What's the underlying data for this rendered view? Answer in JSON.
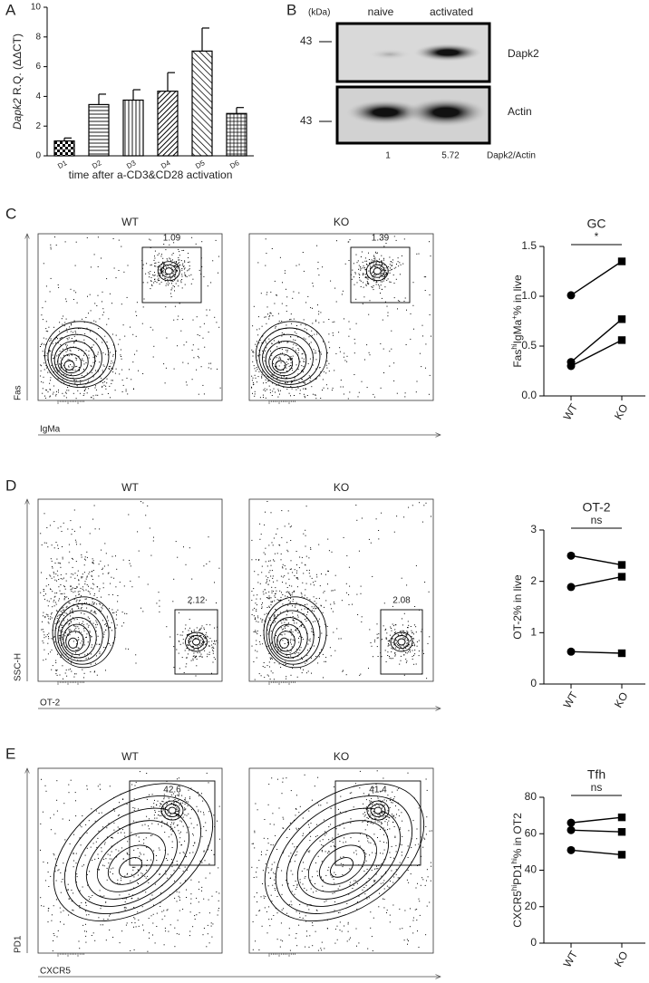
{
  "panel_labels": [
    "A",
    "B",
    "C",
    "D",
    "E"
  ],
  "chart_data": [
    {
      "type": "bar",
      "ylabel": [
        {
          "text": "Dapk2",
          "italic": true
        },
        {
          "text": " R.Q. (ΔΔCT)"
        }
      ],
      "xlabel": "time after a-CD3&CD28 activation",
      "categories": [
        "D1",
        "D2",
        "D3",
        "D4",
        "D5",
        "D6"
      ],
      "values": [
        1.0,
        3.45,
        3.75,
        4.35,
        7.05,
        2.85
      ],
      "errors": [
        0.2,
        0.7,
        0.7,
        1.25,
        1.55,
        0.4
      ],
      "color": "#000000",
      "patterns": [
        "checker",
        "hlines",
        "vlines",
        "diag",
        "diag2",
        "grid"
      ],
      "ylim": [
        0,
        10
      ],
      "yticks": [
        0,
        2,
        4,
        6,
        8,
        10
      ]
    },
    {
      "type": "paired",
      "title": "GC",
      "ylabel": [
        {
          "text": "Fas"
        },
        {
          "text": "hi",
          "sup": true
        },
        {
          "text": "IgMa"
        },
        {
          "text": "+",
          "sup": true
        },
        {
          "text": "% in live"
        }
      ],
      "categories": [
        "WT",
        "KO"
      ],
      "markers": [
        "circle",
        "square"
      ],
      "color": "#000000",
      "series": [
        {
          "values": [
            1.01,
            1.35
          ]
        },
        {
          "values": [
            0.34,
            0.77
          ]
        },
        {
          "values": [
            0.3,
            0.56
          ]
        }
      ],
      "annotation": "*",
      "ylim": [
        0,
        1.5
      ],
      "yticks": [
        {
          "value": 0,
          "label": "0.0"
        },
        0.5,
        {
          "value": 1,
          "label": "1.0"
        },
        1.5
      ]
    },
    {
      "type": "paired",
      "title": "OT-2",
      "ylabel": [
        {
          "text": "OT-2% in live"
        }
      ],
      "categories": [
        "WT",
        "KO"
      ],
      "markers": [
        "circle",
        "square"
      ],
      "color": "#000000",
      "series": [
        {
          "values": [
            2.5,
            2.32
          ]
        },
        {
          "values": [
            1.89,
            2.09
          ]
        },
        {
          "values": [
            0.63,
            0.6
          ]
        }
      ],
      "annotation": "ns",
      "ylim": [
        0,
        3
      ],
      "yticks": [
        0,
        1,
        2,
        3
      ]
    },
    {
      "type": "paired",
      "title": "Tfh",
      "ylabel": [
        {
          "text": "CXCR5"
        },
        {
          "text": "hi",
          "sup": true
        },
        {
          "text": "PD1"
        },
        {
          "text": "hi",
          "sup": true
        },
        {
          "text": "% in OT2"
        }
      ],
      "categories": [
        "WT",
        "KO"
      ],
      "markers": [
        "circle",
        "square"
      ],
      "color": "#000000",
      "series": [
        {
          "values": [
            66,
            69
          ]
        },
        {
          "values": [
            62,
            61
          ]
        },
        {
          "values": [
            51,
            48.5
          ]
        }
      ],
      "annotation": "ns",
      "ylim": [
        0,
        80
      ],
      "yticks": [
        0,
        20,
        40,
        60,
        80
      ]
    }
  ],
  "blot": {
    "unit": "(kDa)",
    "lanes": [
      "naive",
      "activated"
    ],
    "markers": [
      "43",
      "43"
    ],
    "bands": [
      "Dapk2",
      "Actin"
    ],
    "ratios": [
      1,
      5.72
    ],
    "ratio_label": "Dapk2/Actin"
  },
  "flow": [
    {
      "samples": [
        "WT",
        "KO"
      ],
      "gates": [
        1.09,
        1.39
      ],
      "xlabel": "IgMa",
      "ylabel": "Fas"
    },
    {
      "samples": [
        "WT",
        "KO"
      ],
      "gates": [
        2.12,
        2.08
      ],
      "xlabel": "OT-2",
      "ylabel": "SSC-H"
    },
    {
      "samples": [
        "WT",
        "KO"
      ],
      "gates": [
        42.6,
        41.4
      ],
      "xlabel": "CXCR5",
      "ylabel": "PD1"
    }
  ]
}
